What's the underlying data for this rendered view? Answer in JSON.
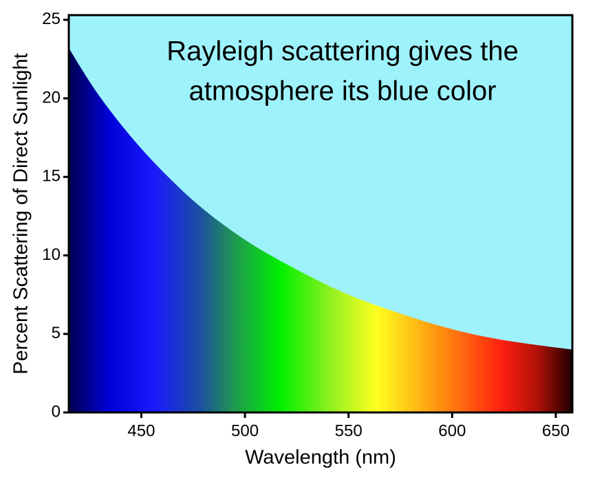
{
  "chart_data": {
    "type": "area",
    "annotation": [
      "Rayleigh scattering gives the",
      "atmosphere its blue color"
    ],
    "x_label": "Wavelength (nm)",
    "y_label": "Percent Scattering of Direct Sunlight",
    "x": [
      415,
      430,
      450,
      475,
      500,
      525,
      550,
      575,
      600,
      625,
      658
    ],
    "values": [
      23.2,
      20.1,
      16.8,
      13.5,
      11.0,
      9.1,
      7.5,
      6.3,
      5.3,
      4.6,
      4.0
    ],
    "background_color": "#9ef2fb",
    "xlim": [
      415,
      658
    ],
    "xticks": [
      450,
      500,
      550,
      600,
      650
    ],
    "ylim": [
      0,
      25.3
    ],
    "yticks": [
      0,
      5,
      10,
      15,
      20,
      25
    ]
  }
}
